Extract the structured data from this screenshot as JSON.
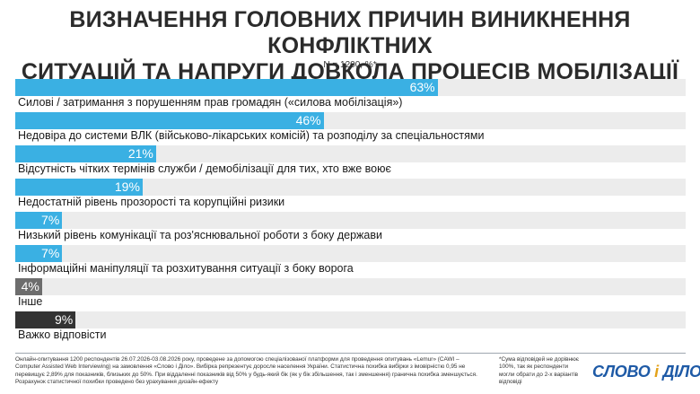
{
  "title_line1": "ВИЗНАЧЕННЯ ГОЛОВНИХ ПРИЧИН ВИНИКНЕННЯ КОНФЛІКТНИХ",
  "title_line2": "СИТУАЦІЙ ТА НАПРУГИ ДОВКОЛА ПРОЦЕСІВ МОБІЛІЗАЦІЇ",
  "subtitle": "N = 1200, %*",
  "colors": {
    "bar_blue": "#3ab0e3",
    "bar_gray": "#6d6d6d",
    "bar_dark": "#333333",
    "track": "#ececec"
  },
  "chart_data": {
    "type": "bar",
    "orientation": "horizontal",
    "unit": "%",
    "xlim": [
      0,
      100
    ],
    "categories": [
      "Силові / затримання з порушенням прав громадян («силова мобілізація»)",
      "Недовіра до системи ВЛК (військово-лікарських комісій) та розподілу за спеціальностями",
      "Відсутність чітких термінів служби / демобілізації для тих, хто вже воює",
      "Недостатній рівень прозорості та корупційні ризики",
      "Низький рівень комунікації та роз'яснювальної роботи з боку держави",
      "Інформаційні маніпуляції та розхитування ситуації з боку ворога",
      "Інше",
      "Важко відповісти"
    ],
    "values": [
      63,
      46,
      21,
      19,
      7,
      7,
      4,
      9
    ],
    "bar_colors": [
      "#3ab0e3",
      "#3ab0e3",
      "#3ab0e3",
      "#3ab0e3",
      "#3ab0e3",
      "#3ab0e3",
      "#6d6d6d",
      "#333333"
    ]
  },
  "footnote": "Онлайн-опитування 1200 респондентів 26.07.2026-03.08.2026 року, проведене за допомогою спеціалізованої платформи для проведення опитувань «Lemur» (CAWI – Computer Assisted Web Interviewing) на замовлення «Слово і Діло». Вибірка репрезентує доросле населення України. Статистична похибка вибірки з імовірністю 0,95 не перевищує 2,89% для показників, близьких до 50%. При віддаленні показників від 50% у будь-який бік (як у бік збільшення, так і зменшення) гранична похибка зменшується. Розрахунок статистичної похибки проведено без урахування дизайн-ефекту",
  "note": "*Сума відповідей не дорівнює 100%, так як респонденти могли обрати до 2-х варіантів відповіді",
  "logo_left": "СЛОВО",
  "logo_amp": "і",
  "logo_right": "ДІЛО"
}
